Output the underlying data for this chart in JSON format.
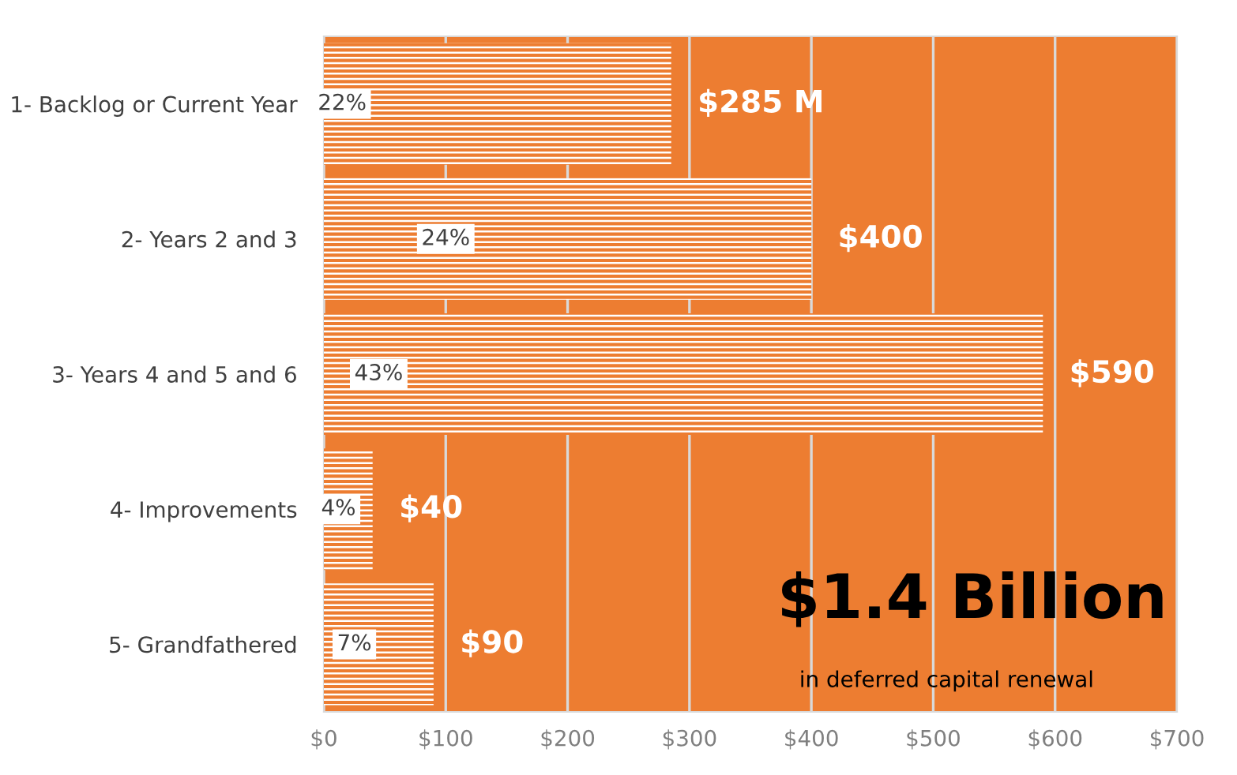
{
  "chart_data": {
    "type": "bar",
    "orientation": "horizontal",
    "categories": [
      "1- Backlog or Current Year",
      "2- Years 2 and 3",
      "3- Years 4 and 5 and 6",
      "4- Improvements",
      "5- Grandfathered"
    ],
    "series": [
      {
        "color": "#ffffff",
        "values": [
          285,
          400,
          590,
          40,
          90
        ],
        "value_labels": [
          "$285 M",
          "$400",
          "$590",
          "$40",
          "$90"
        ]
      }
    ],
    "xlim": [
      0,
      700
    ],
    "xticks": [
      {
        "value": 0,
        "label": "$0"
      },
      {
        "value": 100,
        "label": "$100"
      },
      {
        "value": 200,
        "label": "$200"
      },
      {
        "value": 300,
        "label": "$300"
      },
      {
        "value": 400,
        "label": "$400"
      },
      {
        "value": 500,
        "label": "$500"
      },
      {
        "value": 600,
        "label": "$600"
      },
      {
        "value": 700,
        "label": "$700"
      }
    ],
    "grid": "x",
    "legend": false,
    "annotations": [
      {
        "text": "22%",
        "x": 15,
        "y": "1- Backlog or Current Year"
      },
      {
        "text": "24%",
        "x": 100,
        "y": "2- Years 2 and 3"
      },
      {
        "text": "43%",
        "x": 45,
        "y": "3- Years 4 and 5 and 6"
      },
      {
        "text": "4%",
        "x": 12,
        "y": "4- Improvements"
      },
      {
        "text": "7%",
        "x": 25,
        "y": "5- Grandfathered"
      },
      "$1.4 Billion",
      "in deferred capital renewal"
    ]
  }
}
